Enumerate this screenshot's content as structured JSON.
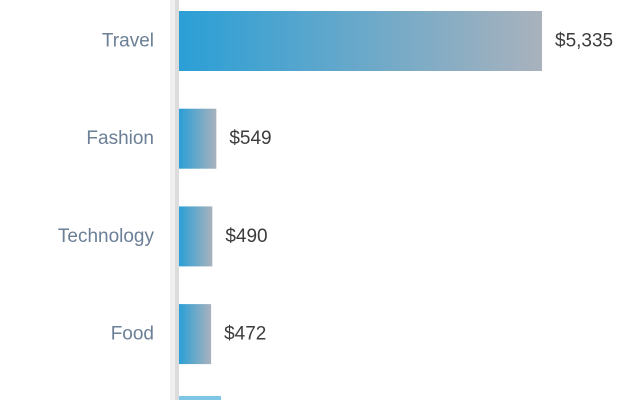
{
  "chart_data": {
    "type": "bar",
    "orientation": "horizontal",
    "categories": [
      "Travel",
      "Fashion",
      "Technology",
      "Food"
    ],
    "values": [
      5335,
      549,
      490,
      472
    ],
    "value_labels": [
      "$5,335",
      "$549",
      "$490",
      "$472"
    ],
    "xlim": [
      0,
      5335
    ],
    "grid": false,
    "colors": {
      "bar_start": "#2a9fd6",
      "bar_end": "#a9b2bd",
      "category_text": "#6b7f96",
      "value_text": "#3c3c3c",
      "axis": "#dddddd",
      "axis_shadow": "#eeeeee"
    }
  }
}
